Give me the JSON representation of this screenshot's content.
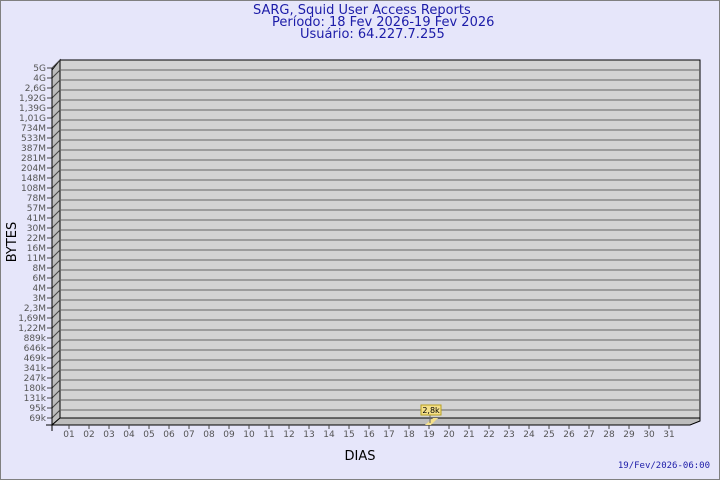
{
  "header": {
    "title": "SARG, Squid User Access Reports",
    "period": "Período: 18 Fev 2026-19 Fev 2026",
    "user": "Usuário: 64.227.7.255"
  },
  "footer": {
    "timestamp": "19/Fev/2026-06:00"
  },
  "chart_data": {
    "type": "bar",
    "title": "SARG, Squid User Access Reports",
    "xlabel": "DIAS",
    "ylabel": "BYTES",
    "y_scale": "log",
    "y_ticks": [
      "5G",
      "4G",
      "2,6G",
      "1,92G",
      "1,39G",
      "1,01G",
      "734M",
      "533M",
      "387M",
      "281M",
      "204M",
      "148M",
      "108M",
      "78M",
      "57M",
      "41M",
      "30M",
      "22M",
      "16M",
      "11M",
      "8M",
      "6M",
      "4M",
      "3M",
      "2,3M",
      "1,69M",
      "1,22M",
      "889k",
      "646k",
      "469k",
      "341k",
      "247k",
      "180k",
      "131k",
      "95k",
      "69k"
    ],
    "categories": [
      "01",
      "02",
      "03",
      "04",
      "05",
      "06",
      "07",
      "08",
      "09",
      "10",
      "11",
      "12",
      "13",
      "14",
      "15",
      "16",
      "17",
      "18",
      "19",
      "20",
      "21",
      "22",
      "23",
      "24",
      "25",
      "26",
      "27",
      "28",
      "29",
      "30",
      "31"
    ],
    "points": [
      {
        "x": "19",
        "value": 2800,
        "label": "2,8k"
      }
    ],
    "grid": true,
    "colors": {
      "background": "#e6e6fa",
      "plot": "#d3d3d3",
      "bar": "#f5e08a",
      "title": "#1c1ca8"
    }
  }
}
